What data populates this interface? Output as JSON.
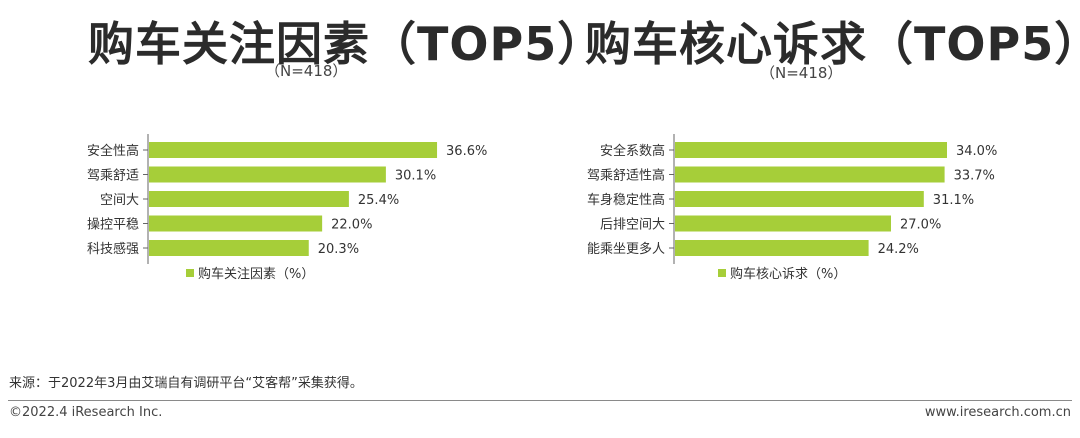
{
  "chart_data": [
    {
      "type": "bar",
      "orientation": "horizontal",
      "title": "购车关注因素（TOP5）",
      "subtitle": "（N=418）",
      "categories": [
        "安全性高",
        "驾乘舒适",
        "空间大",
        "操控平稳",
        "科技感强"
      ],
      "values": [
        36.6,
        30.1,
        25.4,
        22.0,
        20.3
      ],
      "data_labels": [
        "36.6%",
        "30.1%",
        "25.4%",
        "22.0%",
        "20.3%"
      ],
      "series": [
        {
          "name": "购车关注因素（%）",
          "values": [
            36.6,
            30.1,
            25.4,
            22.0,
            20.3
          ]
        }
      ],
      "legend": "购车关注因素（%）",
      "legend_position": "bottom",
      "xlim": [
        0,
        40
      ],
      "grid": false,
      "bar_color": "#a6ce39"
    },
    {
      "type": "bar",
      "orientation": "horizontal",
      "title": "购车核心诉求（TOP5）",
      "subtitle": "（N=418）",
      "categories": [
        "安全系数高",
        "驾乘舒适性高",
        "车身稳定性高",
        "后排空间大",
        "能乘坐更多人"
      ],
      "values": [
        34.0,
        33.7,
        31.1,
        27.0,
        24.2
      ],
      "data_labels": [
        "34.0%",
        "33.7%",
        "31.1%",
        "27.0%",
        "24.2%"
      ],
      "series": [
        {
          "name": "购车核心诉求（%）",
          "values": [
            34.0,
            33.7,
            31.1,
            27.0,
            24.2
          ]
        }
      ],
      "legend": "购车核心诉求（%）",
      "legend_position": "bottom",
      "xlim": [
        0,
        40
      ],
      "grid": false,
      "bar_color": "#a6ce39"
    }
  ],
  "footer": {
    "source": "来源：于2022年3月由艾瑞自有调研平台“艾客帮”采集获得。",
    "copyright": "©2022.4 iResearch Inc.",
    "website": "www.iresearch.com.cn"
  },
  "colors": {
    "bar": "#a6ce39",
    "axis": "#666666",
    "text": "#333333"
  }
}
